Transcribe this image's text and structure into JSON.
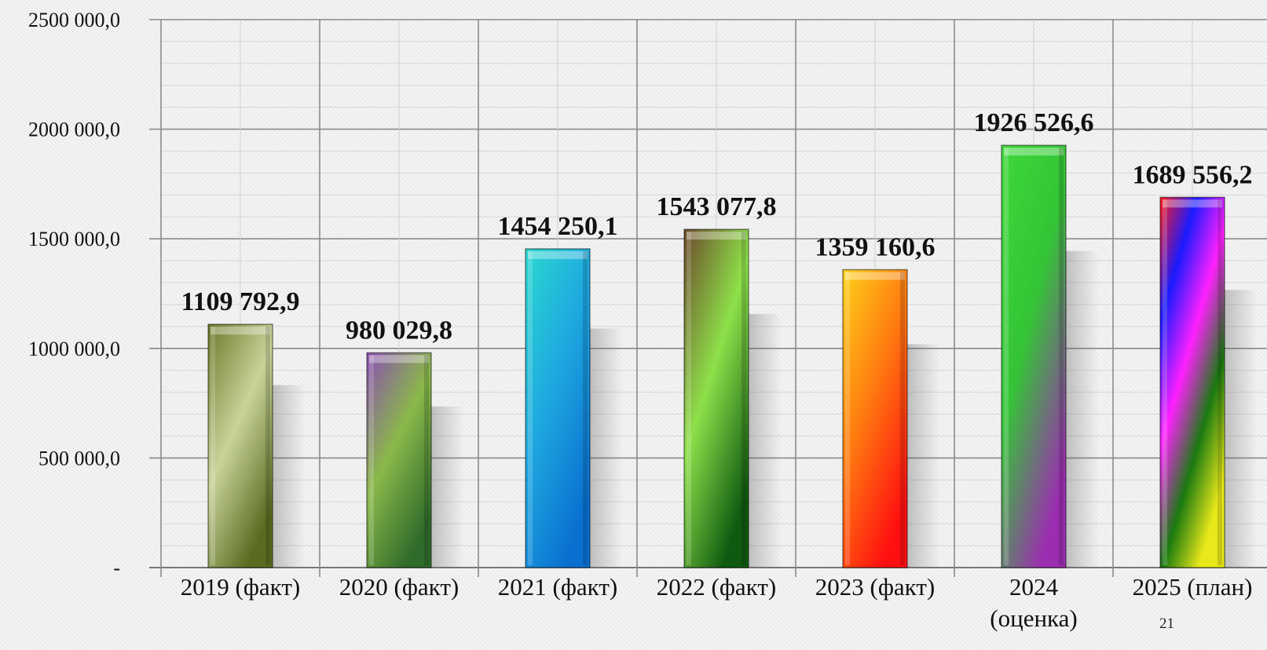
{
  "chart_data": {
    "type": "bar",
    "categories": [
      "2019 (факт)",
      "2020 (факт)",
      "2021 (факт)",
      "2022 (факт)",
      "2023 (факт)",
      "2024 (оценка)",
      "2025 (план)"
    ],
    "category_lines": [
      [
        "2019 (факт)"
      ],
      [
        "2020 (факт)"
      ],
      [
        "2021 (факт)"
      ],
      [
        "2022 (факт)"
      ],
      [
        "2023 (факт)"
      ],
      [
        "2024",
        "(оценка)"
      ],
      [
        "2025 (план)"
      ]
    ],
    "values": [
      1109792.9,
      980029.8,
      1454250.1,
      1543077.8,
      1359160.6,
      1926526.6,
      1689556.2
    ],
    "data_labels": [
      "1109 792,9",
      "980 029,8",
      "1454 250,1",
      "1543 077,8",
      "1359 160,6",
      "1926 526,6",
      "1689 556,2"
    ],
    "y_tick_labels": [
      "-",
      "500 000,0",
      "1000 000,0",
      "1500 000,0",
      "2000 000,0",
      "2500 000,0"
    ],
    "ylim": [
      0,
      2500000
    ],
    "ytick_step": 500000,
    "grid": true,
    "title": "",
    "xlabel": "",
    "ylabel": "",
    "bar_colors": [
      [
        "#6b7a2a",
        "#c8d39a",
        "#5a6a20"
      ],
      [
        "#8a4fb0",
        "#8ab84a",
        "#2f6b2a"
      ],
      [
        "#2bd8d0",
        "#1ea8e0",
        "#0a70d0"
      ],
      [
        "#6b4a2a",
        "#8ee04a",
        "#0f5a10"
      ],
      [
        "#ffd21a",
        "#ff7a10",
        "#ff1010"
      ],
      [
        "#3ed83a",
        "#34c436",
        "#9b2eb0"
      ],
      [
        "#ff1a1a",
        "#1a1aff",
        "#ff20ff",
        "#1a7a10",
        "#e8e81a"
      ]
    ]
  },
  "page_number": "21"
}
